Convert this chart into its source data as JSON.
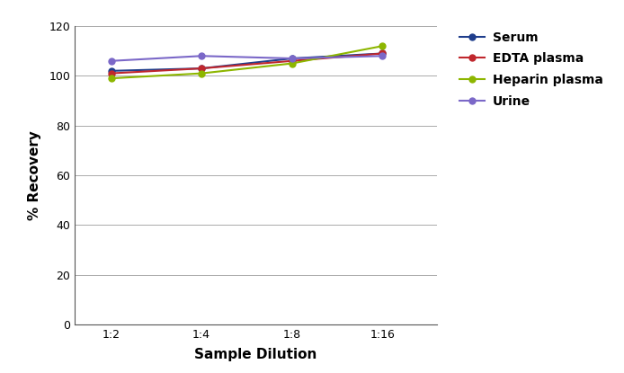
{
  "x_labels": [
    "1:2",
    "1:4",
    "1:8",
    "1:16"
  ],
  "x_values": [
    1,
    2,
    3,
    4
  ],
  "series": [
    {
      "name": "Serum",
      "color": "#1F3E8C",
      "values": [
        102,
        103,
        107,
        109
      ]
    },
    {
      "name": "EDTA plasma",
      "color": "#C0272D",
      "values": [
        101,
        103,
        106,
        109
      ]
    },
    {
      "name": "Heparin plasma",
      "color": "#8DB600",
      "values": [
        99,
        101,
        105,
        112
      ]
    },
    {
      "name": "Urine",
      "color": "#7B68C8",
      "values": [
        106,
        108,
        107,
        108
      ]
    }
  ],
  "ylabel": "% Recovery",
  "xlabel": "Sample Dilution",
  "ylim": [
    0,
    120
  ],
  "yticks": [
    0,
    20,
    40,
    60,
    80,
    100,
    120
  ],
  "background_color": "#ffffff",
  "grid_color": "#aaaaaa",
  "spine_color": "#555555",
  "tick_fontsize": 9,
  "label_fontsize": 11,
  "legend_fontsize": 10
}
